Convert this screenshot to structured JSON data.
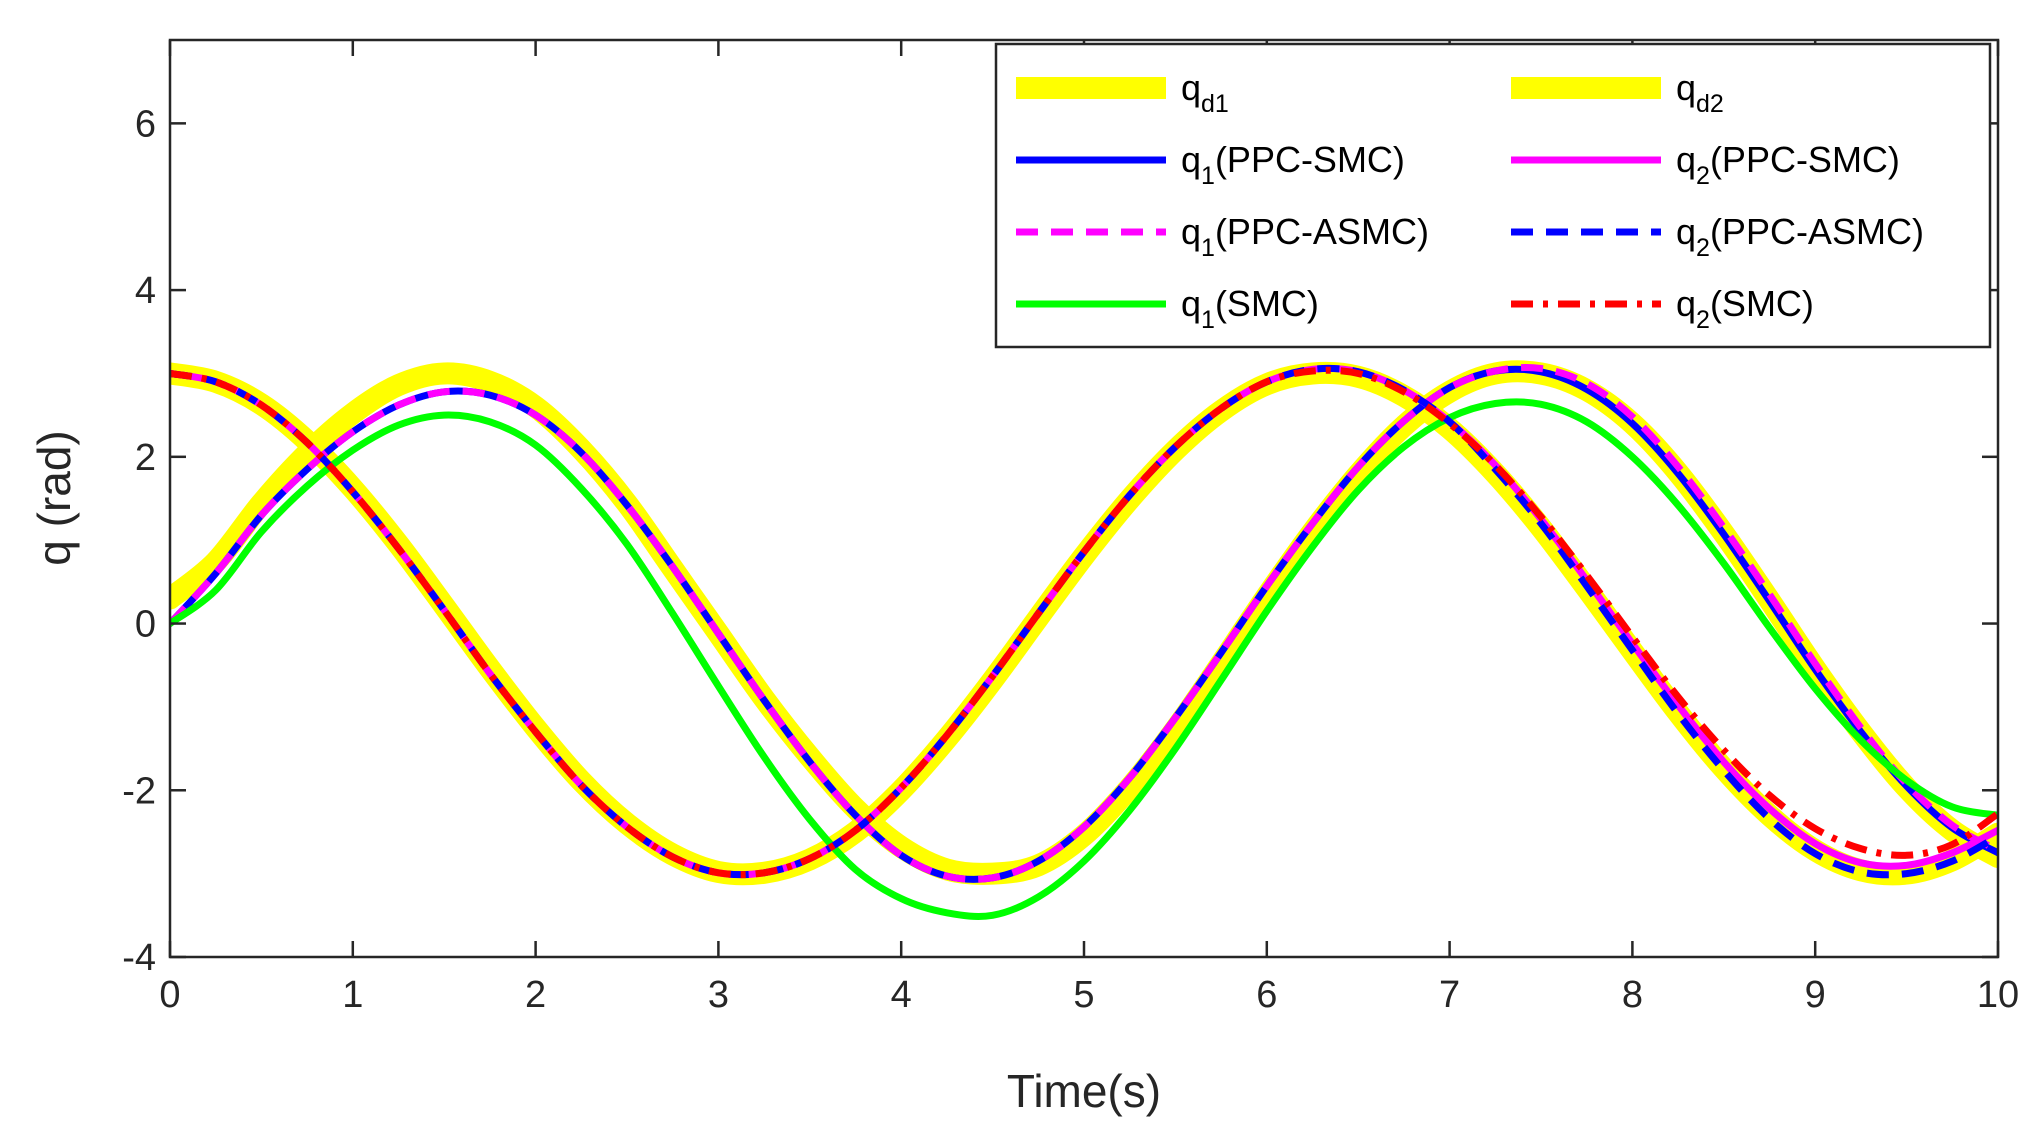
{
  "chart_data": {
    "type": "line",
    "title": "",
    "xlabel": "Time(s)",
    "ylabel": "q (rad)",
    "xlim": [
      0,
      10
    ],
    "ylim": [
      -4,
      7
    ],
    "xticks": [
      0,
      1,
      2,
      3,
      4,
      5,
      6,
      7,
      8,
      9,
      10
    ],
    "yticks": [
      -4,
      -2,
      0,
      2,
      4,
      6
    ],
    "grid": false,
    "legend_position": "top-right",
    "series": [
      {
        "name": "qd1",
        "label_main": "q",
        "label_sub": "d1",
        "label_suffix": "",
        "color": "#ffff00",
        "dash": "solid",
        "width": "thick",
        "x": [
          0,
          0.25,
          0.5,
          0.75,
          1,
          1.25,
          1.5,
          1.75,
          2,
          2.25,
          2.5,
          2.75,
          3,
          3.25,
          3.5,
          3.75,
          4,
          4.25,
          4.5,
          4.75,
          5,
          5.25,
          5.5,
          5.75,
          6,
          6.25,
          6.5,
          6.75,
          7,
          7.25,
          7.5,
          7.75,
          8,
          8.25,
          8.5,
          8.75,
          9,
          9.25,
          9.5,
          9.75,
          10
        ],
        "y": [
          0.3,
          0.74,
          1.44,
          2.04,
          2.52,
          2.86,
          3.0,
          2.9,
          2.6,
          2.09,
          1.44,
          0.66,
          -0.12,
          -0.9,
          -1.6,
          -2.22,
          -2.68,
          -2.95,
          -3.0,
          -2.9,
          -2.54,
          -1.97,
          -1.27,
          -0.48,
          0.33,
          1.1,
          1.79,
          2.37,
          2.78,
          3.0,
          3.0,
          2.8,
          2.4,
          1.81,
          1.08,
          0.28,
          -0.54,
          -1.3,
          -1.97,
          -2.48,
          -2.8
        ]
      },
      {
        "name": "qd2",
        "label_main": "q",
        "label_sub": "d2",
        "label_suffix": "",
        "color": "#ffff00",
        "dash": "solid",
        "width": "thick",
        "x": [
          0,
          0.25,
          0.5,
          0.75,
          1,
          1.25,
          1.5,
          1.75,
          2,
          2.25,
          2.5,
          2.75,
          3,
          3.25,
          3.5,
          3.75,
          4,
          4.25,
          4.5,
          4.75,
          5,
          5.25,
          5.5,
          5.75,
          6,
          6.25,
          6.5,
          6.75,
          7,
          7.25,
          7.5,
          7.75,
          8,
          8.25,
          8.5,
          8.75,
          9,
          9.25,
          9.5,
          9.75,
          10
        ],
        "y": [
          3.0,
          2.9,
          2.63,
          2.19,
          1.62,
          0.95,
          0.21,
          -0.54,
          -1.25,
          -1.89,
          -2.4,
          -2.77,
          -2.98,
          -2.99,
          -2.83,
          -2.5,
          -2.0,
          -1.38,
          -0.68,
          0.07,
          0.81,
          1.49,
          2.08,
          2.55,
          2.87,
          3.0,
          2.96,
          2.73,
          2.34,
          1.8,
          1.15,
          0.42,
          -0.33,
          -1.07,
          -1.74,
          -2.3,
          -2.72,
          -2.96,
          -3.0,
          -2.84,
          -2.52
        ]
      },
      {
        "name": "q1(PPC-SMC)",
        "label_main": "q",
        "label_sub": "1",
        "label_suffix": "(PPC-SMC)",
        "color": "#0000ff",
        "dash": "solid",
        "width": "normal",
        "x": [
          0,
          0.25,
          0.5,
          0.75,
          1,
          1.25,
          1.5,
          1.75,
          2,
          2.25,
          2.5,
          2.75,
          3,
          3.25,
          3.5,
          3.75,
          4,
          4.25,
          4.5,
          4.75,
          5,
          5.25,
          5.5,
          5.75,
          6,
          6.25,
          6.5,
          6.75,
          7,
          7.25,
          7.5,
          7.75,
          8,
          8.25,
          8.5,
          8.75,
          9,
          9.25,
          9.5,
          9.75,
          10
        ],
        "y": [
          0.0,
          0.6,
          1.3,
          1.85,
          2.3,
          2.62,
          2.78,
          2.74,
          2.5,
          2.05,
          1.42,
          0.68,
          -0.12,
          -0.92,
          -1.66,
          -2.3,
          -2.78,
          -3.03,
          -3.05,
          -2.85,
          -2.44,
          -1.85,
          -1.13,
          -0.35,
          0.45,
          1.2,
          1.88,
          2.43,
          2.83,
          3.03,
          3.02,
          2.81,
          2.4,
          1.8,
          1.07,
          0.27,
          -0.55,
          -1.3,
          -1.95,
          -2.45,
          -2.75
        ]
      },
      {
        "name": "q1(PPC-ASMC)",
        "label_main": "q",
        "label_sub": "1",
        "label_suffix": "(PPC-ASMC)",
        "color": "#ff00ff",
        "dash": "dashed",
        "width": "normal",
        "x": [
          0,
          0.25,
          0.5,
          0.75,
          1,
          1.25,
          1.5,
          1.75,
          2,
          2.25,
          2.5,
          2.75,
          3,
          3.25,
          3.5,
          3.75,
          4,
          4.25,
          4.5,
          4.75,
          5,
          5.25,
          5.5,
          5.75,
          6,
          6.25,
          6.5,
          6.75,
          7,
          7.25,
          7.5,
          7.75,
          8,
          8.25,
          8.5,
          8.75,
          9,
          9.25,
          9.5,
          9.75,
          10
        ],
        "y": [
          0.0,
          0.6,
          1.3,
          1.85,
          2.3,
          2.62,
          2.78,
          2.74,
          2.5,
          2.05,
          1.42,
          0.68,
          -0.12,
          -0.92,
          -1.66,
          -2.3,
          -2.78,
          -3.03,
          -3.05,
          -2.85,
          -2.44,
          -1.85,
          -1.13,
          -0.35,
          0.45,
          1.2,
          1.88,
          2.43,
          2.83,
          3.03,
          3.06,
          2.88,
          2.48,
          1.88,
          1.15,
          0.35,
          -0.48,
          -1.25,
          -1.92,
          -2.42,
          -2.72
        ]
      },
      {
        "name": "q1(SMC)",
        "label_main": "q",
        "label_sub": "1",
        "label_suffix": "(SMC)",
        "color": "#00ff00",
        "dash": "solid",
        "width": "normal",
        "x": [
          0,
          0.25,
          0.5,
          0.75,
          1,
          1.25,
          1.5,
          1.75,
          2,
          2.25,
          2.5,
          2.75,
          3,
          3.25,
          3.5,
          3.75,
          4,
          4.25,
          4.5,
          4.75,
          5,
          5.25,
          5.5,
          5.75,
          6,
          6.25,
          6.5,
          6.75,
          7,
          7.25,
          7.5,
          7.75,
          8,
          8.25,
          8.5,
          8.75,
          9,
          9.25,
          9.5,
          9.75,
          10
        ],
        "y": [
          0.0,
          0.4,
          1.1,
          1.65,
          2.08,
          2.38,
          2.5,
          2.42,
          2.14,
          1.62,
          0.95,
          0.12,
          -0.75,
          -1.6,
          -2.35,
          -2.95,
          -3.3,
          -3.47,
          -3.5,
          -3.28,
          -2.85,
          -2.24,
          -1.5,
          -0.68,
          0.15,
          0.92,
          1.6,
          2.12,
          2.47,
          2.64,
          2.63,
          2.42,
          2.0,
          1.42,
          0.72,
          -0.05,
          -0.78,
          -1.4,
          -1.88,
          -2.2,
          -2.3
        ]
      },
      {
        "name": "q2(PPC-SMC)",
        "label_main": "q",
        "label_sub": "2",
        "label_suffix": "(PPC-SMC)",
        "color": "#ff00ff",
        "dash": "solid",
        "width": "normal",
        "x": [
          0,
          0.25,
          0.5,
          0.75,
          1,
          1.25,
          1.5,
          1.75,
          2,
          2.25,
          2.5,
          2.75,
          3,
          3.25,
          3.5,
          3.75,
          4,
          4.25,
          4.5,
          4.75,
          5,
          5.25,
          5.5,
          5.75,
          6,
          6.25,
          6.5,
          6.75,
          7,
          7.25,
          7.5,
          7.75,
          8,
          8.25,
          8.5,
          8.75,
          9,
          9.25,
          9.5,
          9.75,
          10
        ],
        "y": [
          3.0,
          2.9,
          2.62,
          2.17,
          1.58,
          0.9,
          0.16,
          -0.6,
          -1.3,
          -1.94,
          -2.44,
          -2.8,
          -2.99,
          -2.99,
          -2.82,
          -2.48,
          -1.97,
          -1.34,
          -0.63,
          0.12,
          0.86,
          1.54,
          2.12,
          2.58,
          2.9,
          3.05,
          3.02,
          2.8,
          2.42,
          1.9,
          1.25,
          0.52,
          -0.24,
          -0.98,
          -1.66,
          -2.22,
          -2.64,
          -2.87,
          -2.9,
          -2.75,
          -2.48
        ]
      },
      {
        "name": "q2(PPC-ASMC)",
        "label_main": "q",
        "label_sub": "2",
        "label_suffix": "(PPC-ASMC)",
        "color": "#0000ff",
        "dash": "dashed",
        "width": "normal",
        "x": [
          0,
          0.25,
          0.5,
          0.75,
          1,
          1.25,
          1.5,
          1.75,
          2,
          2.25,
          2.5,
          2.75,
          3,
          3.25,
          3.5,
          3.75,
          4,
          4.25,
          4.5,
          4.75,
          5,
          5.25,
          5.5,
          5.75,
          6,
          6.25,
          6.5,
          6.75,
          7,
          7.25,
          7.5,
          7.75,
          8,
          8.25,
          8.5,
          8.75,
          9,
          9.25,
          9.5,
          9.75,
          10
        ],
        "y": [
          3.0,
          2.9,
          2.62,
          2.17,
          1.58,
          0.9,
          0.16,
          -0.6,
          -1.3,
          -1.94,
          -2.44,
          -2.8,
          -2.99,
          -2.99,
          -2.82,
          -2.48,
          -1.97,
          -1.34,
          -0.63,
          0.12,
          0.86,
          1.54,
          2.12,
          2.58,
          2.9,
          3.05,
          3.02,
          2.8,
          2.42,
          1.85,
          1.2,
          0.45,
          -0.32,
          -1.08,
          -1.76,
          -2.34,
          -2.76,
          -2.98,
          -3.0,
          -2.85,
          -2.55
        ]
      },
      {
        "name": "q2(SMC)",
        "label_main": "q",
        "label_sub": "2",
        "label_suffix": "(SMC)",
        "color": "#ff0000",
        "dash": "dashdot",
        "width": "normal",
        "x": [
          0,
          0.25,
          0.5,
          0.75,
          1,
          1.25,
          1.5,
          1.75,
          2,
          2.25,
          2.5,
          2.75,
          3,
          3.25,
          3.5,
          3.75,
          4,
          4.25,
          4.5,
          4.75,
          5,
          5.25,
          5.5,
          5.75,
          6,
          6.25,
          6.5,
          6.75,
          7,
          7.25,
          7.5,
          7.75,
          8,
          8.25,
          8.5,
          8.75,
          9,
          9.25,
          9.5,
          9.75,
          10
        ],
        "y": [
          3.0,
          2.9,
          2.62,
          2.17,
          1.58,
          0.9,
          0.16,
          -0.6,
          -1.3,
          -1.94,
          -2.44,
          -2.8,
          -2.99,
          -2.99,
          -2.82,
          -2.48,
          -1.97,
          -1.34,
          -0.63,
          0.12,
          0.86,
          1.54,
          2.12,
          2.58,
          2.9,
          3.03,
          3.0,
          2.78,
          2.4,
          1.9,
          1.28,
          0.58,
          -0.16,
          -0.88,
          -1.52,
          -2.06,
          -2.46,
          -2.7,
          -2.78,
          -2.65,
          -2.28
        ]
      }
    ]
  }
}
